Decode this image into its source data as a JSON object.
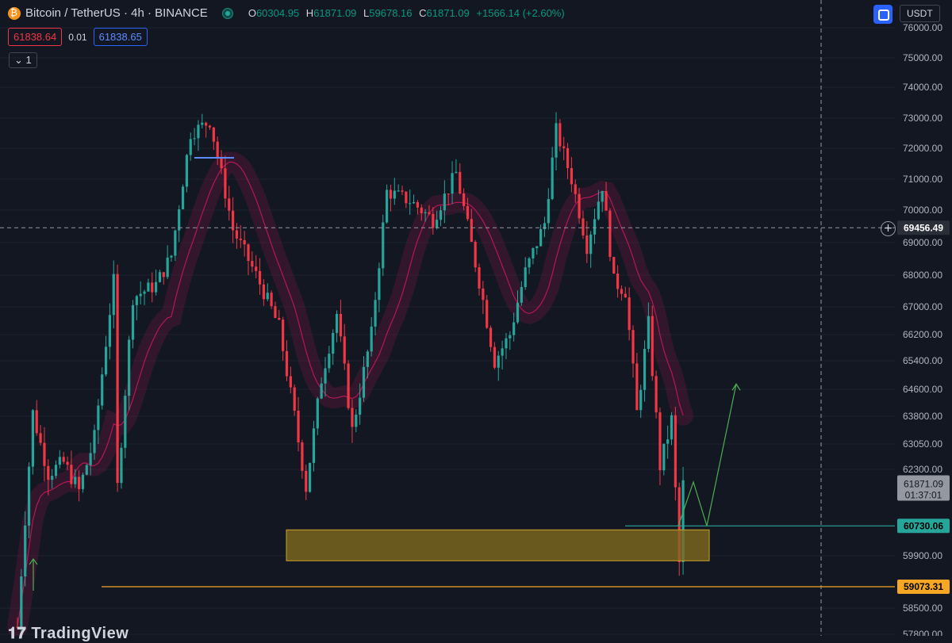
{
  "header": {
    "title": "Bitcoin / TetherUS · 4h · BINANCE",
    "open_label": "O",
    "open": "60304.95",
    "high_label": "H",
    "high": "61871.09",
    "low_label": "L",
    "low": "59678.16",
    "close_label": "C",
    "close": "61871.09",
    "change": "+1566.14 (+2.60%)"
  },
  "quote": {
    "bid": "61838.64",
    "spread": "0.01",
    "ask": "61838.65"
  },
  "indicators_toggle": "1",
  "currency_button": "USDT",
  "watermark": "TradingView",
  "colors": {
    "up": "#26a69a",
    "down": "#f23645",
    "background": "#131722",
    "ma": "#c2185b",
    "support_zone": "#806a1e",
    "support_line": "#f5a623",
    "level_line": "#26a69a",
    "arrow": "#4caf50"
  },
  "chart_data": {
    "type": "candlestick",
    "symbol": "Bitcoin / TetherUS",
    "timeframe": "4h",
    "exchange": "BINANCE",
    "ylim": [
      57800,
      76000
    ],
    "y_ticks": [
      "76000.00",
      "75000.00",
      "74000.00",
      "73000.00",
      "72000.00",
      "71000.00",
      "70000.00",
      "69000.00",
      "68000.00",
      "67000.00",
      "66200.00",
      "65400.00",
      "64600.00",
      "63800.00",
      "63050.00",
      "62300.00",
      "59900.00",
      "58500.00",
      "57800.00"
    ],
    "key_points": [
      {
        "x": 0,
        "y": 58000
      },
      {
        "x": 4,
        "y": 63900
      },
      {
        "x": 8,
        "y": 62200
      },
      {
        "x": 12,
        "y": 62500
      },
      {
        "x": 16,
        "y": 61700
      },
      {
        "x": 20,
        "y": 63200
      },
      {
        "x": 25,
        "y": 67800
      },
      {
        "x": 26,
        "y": 61800
      },
      {
        "x": 30,
        "y": 67300
      },
      {
        "x": 36,
        "y": 67700
      },
      {
        "x": 40,
        "y": 68600
      },
      {
        "x": 45,
        "y": 72500
      },
      {
        "x": 50,
        "y": 72900
      },
      {
        "x": 56,
        "y": 69400
      },
      {
        "x": 62,
        "y": 68000
      },
      {
        "x": 68,
        "y": 66400
      },
      {
        "x": 72,
        "y": 63800
      },
      {
        "x": 75,
        "y": 61800
      },
      {
        "x": 79,
        "y": 64900
      },
      {
        "x": 83,
        "y": 66800
      },
      {
        "x": 87,
        "y": 63400
      },
      {
        "x": 92,
        "y": 66200
      },
      {
        "x": 96,
        "y": 70600
      },
      {
        "x": 102,
        "y": 70300
      },
      {
        "x": 108,
        "y": 69700
      },
      {
        "x": 114,
        "y": 71200
      },
      {
        "x": 120,
        "y": 67800
      },
      {
        "x": 124,
        "y": 65400
      },
      {
        "x": 128,
        "y": 66200
      },
      {
        "x": 132,
        "y": 68100
      },
      {
        "x": 137,
        "y": 69600
      },
      {
        "x": 140,
        "y": 72600
      },
      {
        "x": 144,
        "y": 71000
      },
      {
        "x": 148,
        "y": 68900
      },
      {
        "x": 152,
        "y": 70800
      },
      {
        "x": 155,
        "y": 67800
      },
      {
        "x": 158,
        "y": 67500
      },
      {
        "x": 161,
        "y": 63900
      },
      {
        "x": 164,
        "y": 66500
      },
      {
        "x": 167,
        "y": 62400
      },
      {
        "x": 170,
        "y": 63700
      },
      {
        "x": 172,
        "y": 59700
      },
      {
        "x": 173,
        "y": 61871
      }
    ],
    "horizontal_lines": [
      {
        "price": 69456.49,
        "label": "69456.49",
        "style": "crosshair"
      },
      {
        "price": 60730.06,
        "label": "60730.06",
        "color": "#26a69a"
      },
      {
        "price": 59073.31,
        "label": "59073.31",
        "color": "#f5a623"
      }
    ],
    "last_price": {
      "value": "61871.09",
      "countdown": "01:37:01"
    },
    "support_zone": {
      "from": 60180,
      "to": 60730
    },
    "projection": [
      60730,
      61950,
      60730,
      64750
    ]
  }
}
